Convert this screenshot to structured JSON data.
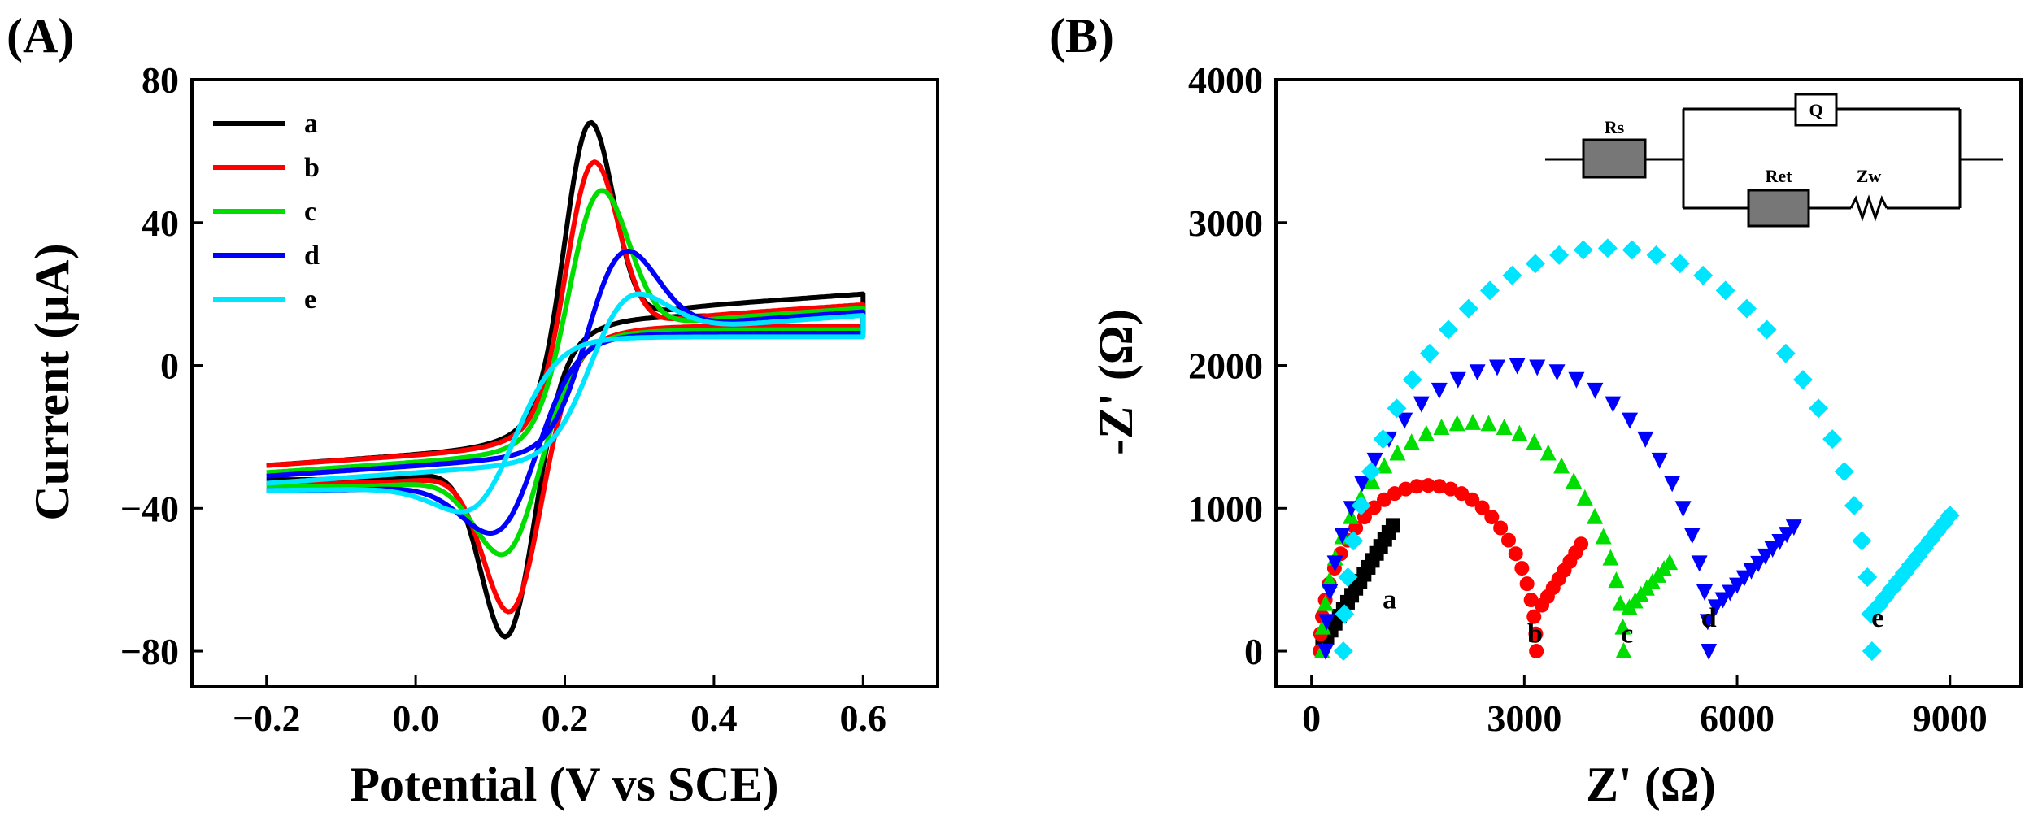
{
  "chart_data": [
    {
      "panel": "(A)",
      "type": "line",
      "title": "",
      "xlabel": "Potential (V vs SCE)",
      "ylabel": "Current (μA)",
      "xlim": [
        -0.3,
        0.7
      ],
      "ylim": [
        -90,
        80
      ],
      "xticks": [
        -0.2,
        0.0,
        0.2,
        0.4,
        0.6
      ],
      "xtick_labels": [
        "−0.2",
        "0.0",
        "0.2",
        "0.4",
        "0.6"
      ],
      "yticks": [
        -80,
        -40,
        0,
        40,
        80
      ],
      "ytick_labels": [
        "−80",
        "−40",
        "0",
        "40",
        "80"
      ],
      "legend_position": "top-left",
      "series": [
        {
          "name": "a",
          "color": "#000000",
          "params": {
            "Epa": 0.235,
            "Ipa": 68,
            "Epc": 0.12,
            "Ipc": -76,
            "tail_hi": 20,
            "lo_fwd": -28,
            "lo_rev": -32,
            "w": 0.045
          }
        },
        {
          "name": "b",
          "color": "#ff0000",
          "params": {
            "Epa": 0.24,
            "Ipa": 57,
            "Epc": 0.125,
            "Ipc": -69,
            "tail_hi": 17,
            "lo_fwd": -28,
            "lo_rev": -33,
            "w": 0.048
          }
        },
        {
          "name": "c",
          "color": "#00dd00",
          "params": {
            "Epa": 0.25,
            "Ipa": 49,
            "Epc": 0.115,
            "Ipc": -53,
            "tail_hi": 16,
            "lo_fwd": -30,
            "lo_rev": -34,
            "w": 0.055
          }
        },
        {
          "name": "d",
          "color": "#0000ff",
          "params": {
            "Epa": 0.285,
            "Ipa": 32,
            "Epc": 0.1,
            "Ipc": -47,
            "tail_hi": 15,
            "lo_fwd": -31,
            "lo_rev": -35,
            "w": 0.065
          }
        },
        {
          "name": "e",
          "color": "#00e5ff",
          "params": {
            "Epa": 0.3,
            "Ipa": 20,
            "Epc": 0.06,
            "Ipc": -41,
            "tail_hi": 14,
            "lo_fwd": -33,
            "lo_rev": -35,
            "w": 0.075
          }
        }
      ]
    },
    {
      "panel": "(B)",
      "type": "scatter",
      "title": "",
      "xlabel": "Z' (Ω)",
      "ylabel": "-Z' (Ω)",
      "xlim": [
        -500,
        10000
      ],
      "ylim": [
        -250,
        4000
      ],
      "xticks": [
        0,
        3000,
        6000,
        9000
      ],
      "xtick_labels": [
        "0",
        "3000",
        "6000",
        "9000"
      ],
      "yticks": [
        0,
        1000,
        2000,
        3000,
        4000
      ],
      "ytick_labels": [
        "0",
        "1000",
        "2000",
        "3000",
        "4000"
      ],
      "inset": {
        "type": "equivalent-circuit",
        "labels": [
          "Rs",
          "Q",
          "Ret",
          "Zw"
        ]
      },
      "series": [
        {
          "name": "a",
          "color": "#000000",
          "marker": "square",
          "label_at": [
            1100,
            300
          ],
          "params": {
            "Rs": 100,
            "Rct": 0,
            "peak": 0,
            "tail_end_x": 1150,
            "tail_end_y": 880,
            "pts_arc": 0,
            "pts_tail": 18
          }
        },
        {
          "name": "b",
          "color": "#ff0000",
          "marker": "circle",
          "label_at": [
            3150,
            60
          ],
          "params": {
            "Rs": 120,
            "Rct": 3050,
            "peak": 1160,
            "tail_end_x": 3800,
            "tail_end_y": 750,
            "pts_arc": 30,
            "pts_tail": 8
          }
        },
        {
          "name": "c",
          "color": "#00dd00",
          "marker": "triangle-up",
          "label_at": [
            4450,
            60
          ],
          "params": {
            "Rs": 150,
            "Rct": 4250,
            "peak": 1600,
            "tail_end_x": 5050,
            "tail_end_y": 620,
            "pts_arc": 30,
            "pts_tail": 8
          }
        },
        {
          "name": "d",
          "color": "#0000ff",
          "marker": "triangle-down",
          "label_at": [
            5600,
            170
          ],
          "params": {
            "Rs": 200,
            "Rct": 5400,
            "peak": 2000,
            "tail_end_x": 6800,
            "tail_end_y": 870,
            "pts_arc": 30,
            "pts_tail": 12
          }
        },
        {
          "name": "e",
          "color": "#00e5ff",
          "marker": "diamond",
          "label_at": [
            7980,
            170
          ],
          "params": {
            "Rs": 450,
            "Rct": 7450,
            "peak": 2820,
            "tail_end_x": 9000,
            "tail_end_y": 950,
            "pts_arc": 34,
            "pts_tail": 12
          }
        }
      ]
    }
  ]
}
